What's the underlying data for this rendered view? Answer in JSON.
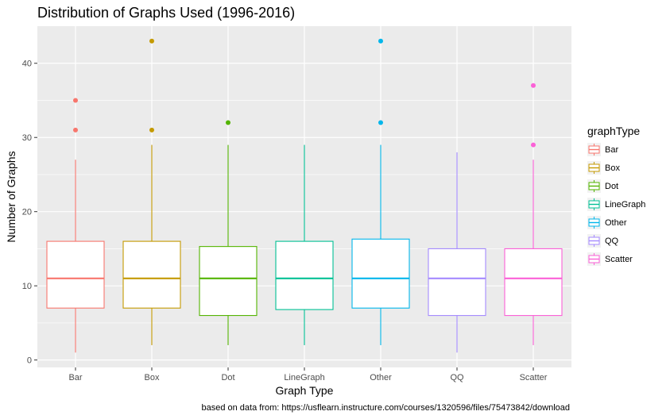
{
  "chart_data": {
    "type": "box",
    "title": "Distribution of Graphs Used (1996-2016)",
    "xlabel": "Graph Type",
    "ylabel": "Number of Graphs",
    "caption": "based on data from: https://usflearn.instructure.com/courses/1320596/files/75473842/download",
    "ylim": [
      -1,
      45
    ],
    "yticks": [
      0,
      10,
      20,
      30,
      40
    ],
    "ytick_labels": [
      "0",
      "10",
      "20",
      "30",
      "40"
    ],
    "grid": true,
    "legend": {
      "title": "graphType",
      "placement": "right"
    },
    "categories": [
      "Bar",
      "Box",
      "Dot",
      "LineGraph",
      "Other",
      "QQ",
      "Scatter"
    ],
    "series": [
      {
        "name": "Bar",
        "color": "#F8766D",
        "whisker_low": 1,
        "q1": 7,
        "median": 11,
        "q3": 16,
        "whisker_high": 27,
        "outliers": [
          31,
          35
        ]
      },
      {
        "name": "Box",
        "color": "#C49A00",
        "whisker_low": 2,
        "q1": 7,
        "median": 11,
        "q3": 16,
        "whisker_high": 29,
        "outliers": [
          31,
          43
        ]
      },
      {
        "name": "Dot",
        "color": "#53B400",
        "whisker_low": 2,
        "q1": 6,
        "median": 11,
        "q3": 15.3,
        "whisker_high": 29,
        "outliers": [
          32
        ]
      },
      {
        "name": "LineGraph",
        "color": "#00C094",
        "whisker_low": 2,
        "q1": 6.8,
        "median": 11,
        "q3": 16,
        "whisker_high": 29,
        "outliers": []
      },
      {
        "name": "Other",
        "color": "#00B6EB",
        "whisker_low": 2,
        "q1": 7,
        "median": 11,
        "q3": 16.3,
        "whisker_high": 29,
        "outliers": [
          32,
          43
        ]
      },
      {
        "name": "QQ",
        "color": "#A58AFF",
        "whisker_low": 1,
        "q1": 6,
        "median": 11,
        "q3": 15,
        "whisker_high": 28,
        "outliers": []
      },
      {
        "name": "Scatter",
        "color": "#FB61D7",
        "whisker_low": 2,
        "q1": 6,
        "median": 11,
        "q3": 15,
        "whisker_high": 27,
        "outliers": [
          29,
          37
        ]
      }
    ]
  }
}
